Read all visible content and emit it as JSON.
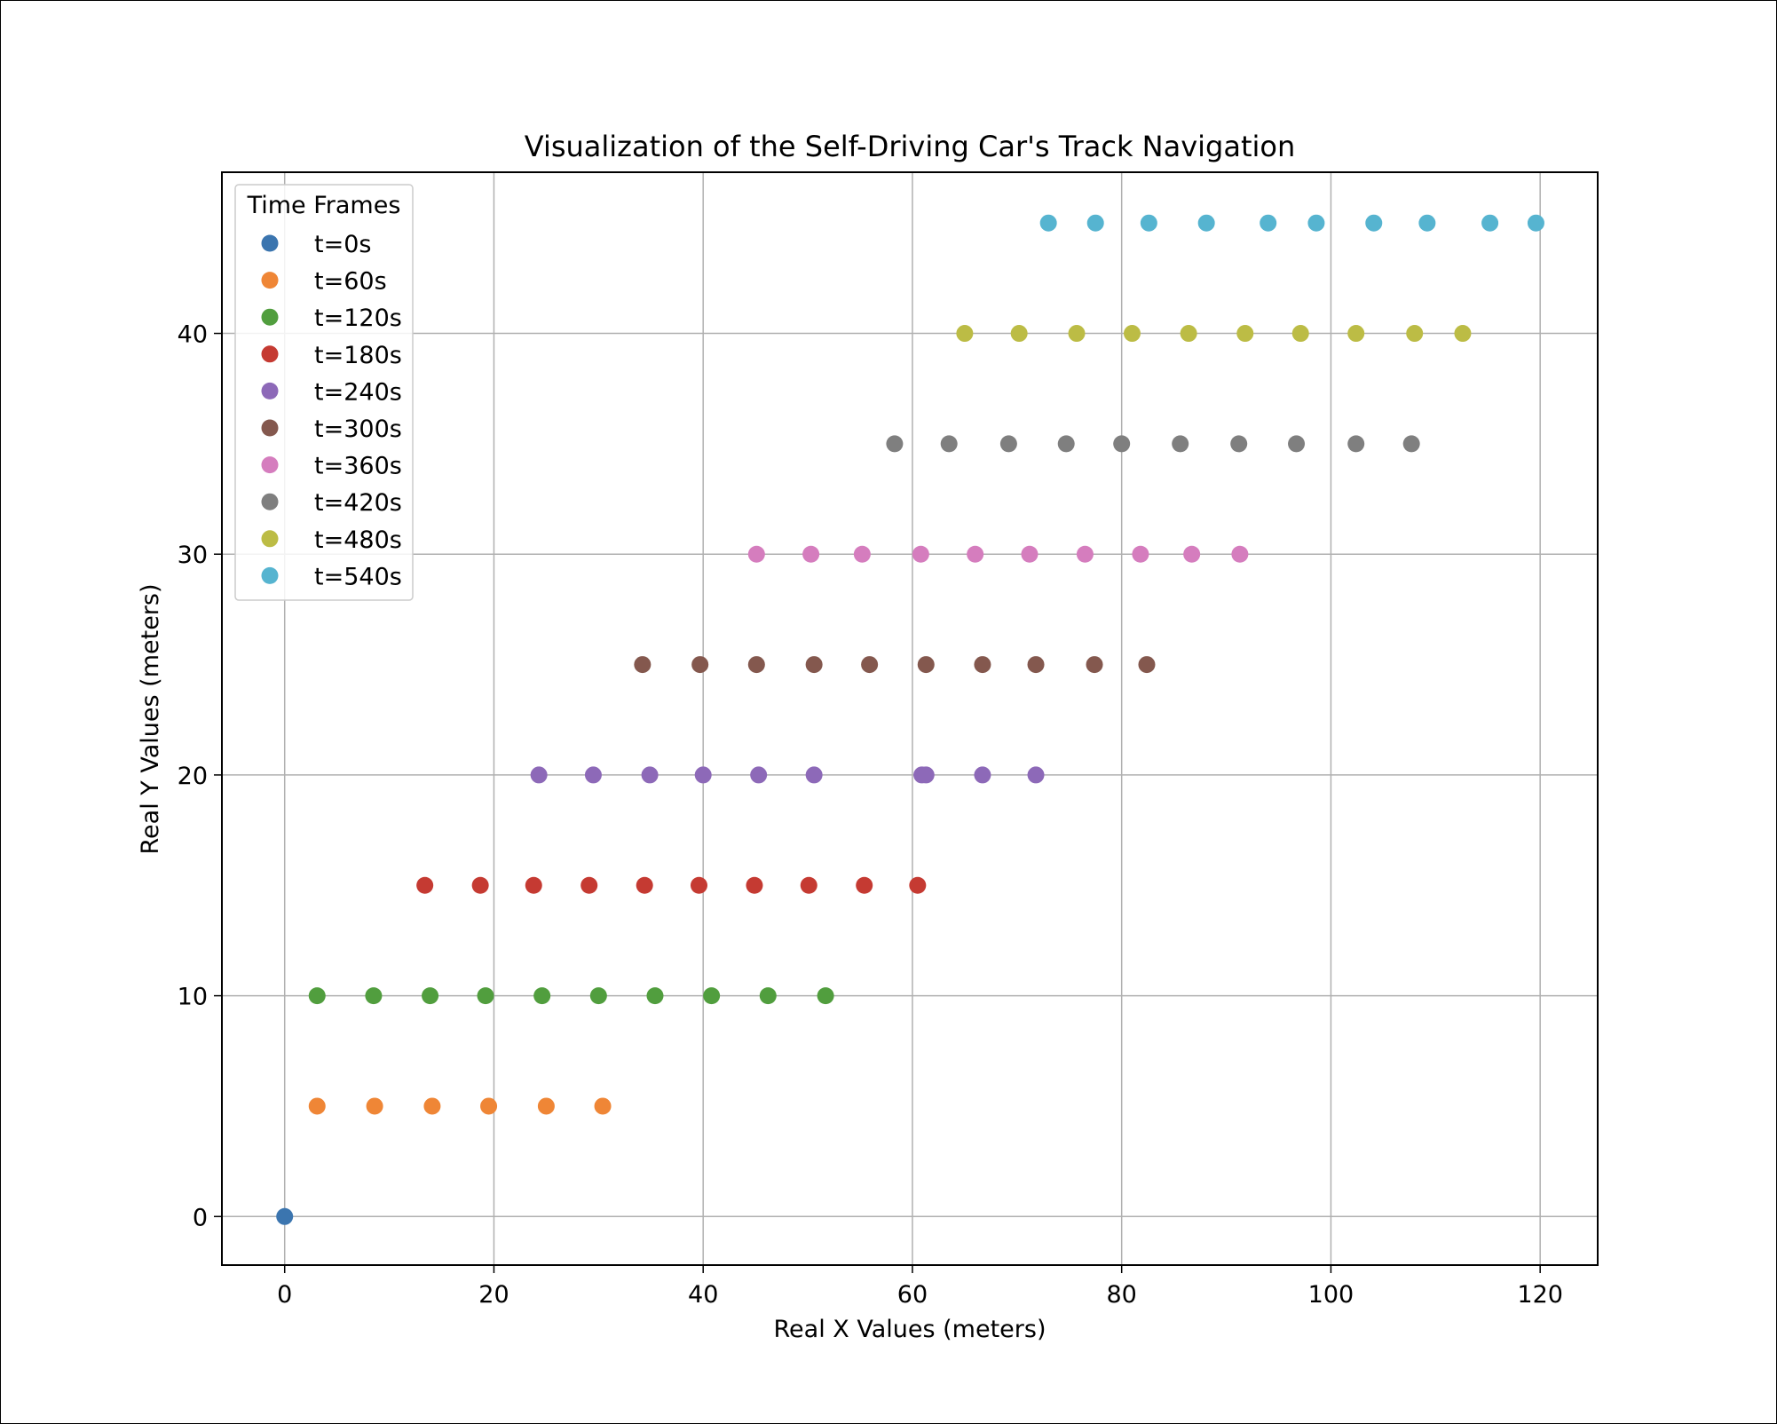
{
  "chart_data": {
    "type": "scatter",
    "title": "Visualization of the Self-Driving Car's Track Navigation",
    "xlabel": "Real X Values (meters)",
    "ylabel": "Real Y Values (meters)",
    "xlim": [
      -6,
      125.5
    ],
    "ylim": [
      -2.2,
      47.3
    ],
    "xticks": [
      0,
      20,
      40,
      60,
      80,
      100,
      120
    ],
    "yticks": [
      0,
      10,
      20,
      30,
      40
    ],
    "grid": true,
    "legend": {
      "title": "Time Frames",
      "position": "upper-left"
    },
    "series": [
      {
        "name": "t=0s",
        "color": "#3b75af",
        "y": 0,
        "x": [
          0
        ]
      },
      {
        "name": "t=60s",
        "color": "#ef8636",
        "y": 5,
        "x": [
          3.1,
          8.6,
          14.1,
          19.5,
          25.0,
          30.4
        ]
      },
      {
        "name": "t=120s",
        "color": "#519e3e",
        "y": 10,
        "x": [
          3.1,
          8.5,
          13.9,
          19.2,
          24.6,
          30.0,
          35.4,
          40.8,
          46.2,
          51.7
        ]
      },
      {
        "name": "t=180s",
        "color": "#c53a32",
        "y": 15,
        "x": [
          13.4,
          18.7,
          23.8,
          29.1,
          34.4,
          39.6,
          44.9,
          50.1,
          55.4,
          60.5
        ]
      },
      {
        "name": "t=240s",
        "color": "#8d69b8",
        "y": 20,
        "x": [
          24.3,
          29.5,
          34.9,
          40.0,
          45.3,
          50.6,
          60.9,
          61.3,
          66.7,
          71.8
        ]
      },
      {
        "name": "t=300s",
        "color": "#84584e",
        "y": 25,
        "x": [
          34.2,
          39.7,
          45.1,
          50.6,
          55.9,
          61.3,
          66.7,
          71.8,
          77.4,
          82.4
        ]
      },
      {
        "name": "t=360s",
        "color": "#d57dbe",
        "y": 30,
        "x": [
          45.1,
          50.3,
          55.2,
          60.8,
          66.0,
          71.2,
          76.5,
          81.8,
          86.7,
          91.3
        ]
      },
      {
        "name": "t=420s",
        "color": "#7f7f7f",
        "y": 35,
        "x": [
          58.3,
          63.5,
          69.2,
          74.7,
          80.0,
          85.6,
          91.2,
          96.7,
          102.4,
          107.7
        ]
      },
      {
        "name": "t=480s",
        "color": "#bcbc45",
        "y": 40,
        "x": [
          65.0,
          70.2,
          75.7,
          81.0,
          86.4,
          91.8,
          97.1,
          102.4,
          108.0,
          112.6
        ]
      },
      {
        "name": "t=540s",
        "color": "#56b4d0",
        "y": 45,
        "x": [
          73.0,
          77.5,
          82.6,
          88.1,
          94.0,
          98.6,
          104.1,
          109.2,
          115.2,
          119.6
        ]
      }
    ]
  }
}
